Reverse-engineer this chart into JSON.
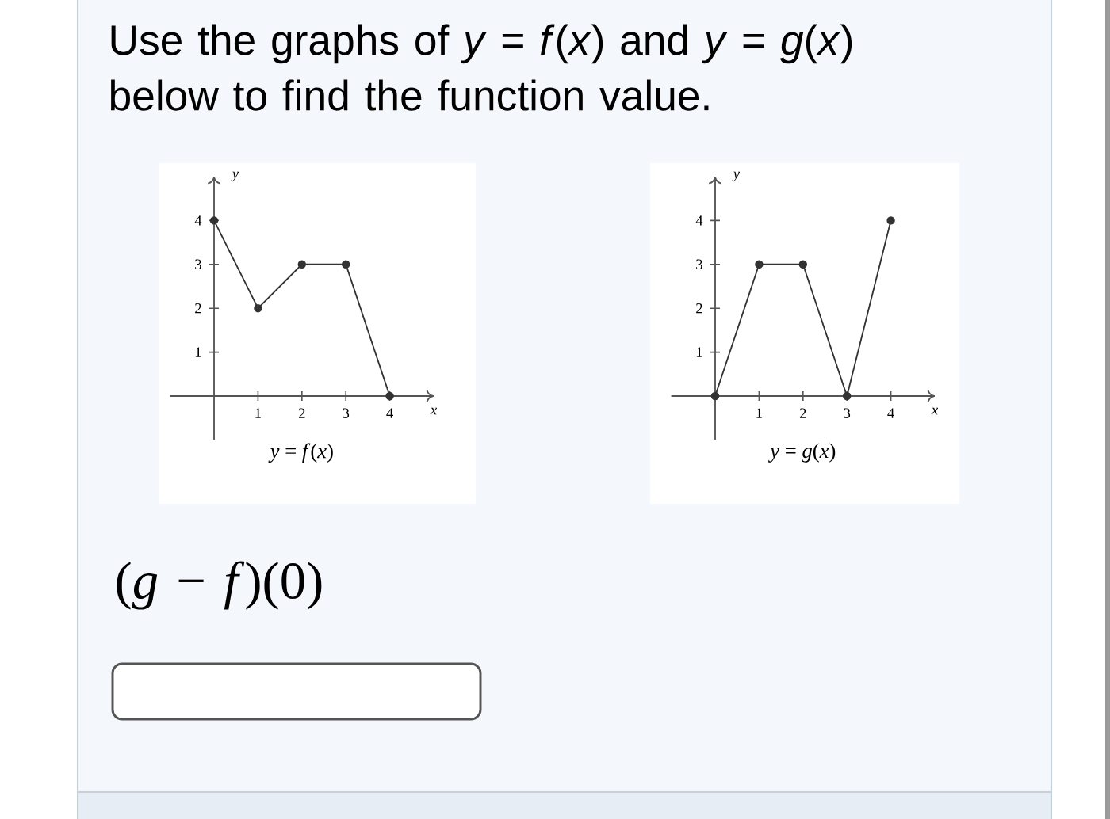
{
  "chart_data": [
    {
      "type": "other",
      "title": "Use the graphs of *y* = *f*(*x*) and *y* = *g*(*x*) below to find the function value."
    },
    {
      "type": "line",
      "title": "*y* = *f*(*x*)",
      "xlabel": "x",
      "ylabel": "y",
      "x": [
        0,
        1,
        2,
        3,
        4
      ],
      "values": [
        4,
        2,
        3,
        3,
        0
      ],
      "color": "#333333",
      "marker": "circle",
      "line_style": "solid",
      "xlim": [
        -1,
        5
      ],
      "ylim": [
        -1,
        5
      ],
      "xticks": [
        1,
        2,
        3,
        4
      ],
      "yticks": [
        1,
        2,
        3,
        4
      ]
    },
    {
      "type": "line",
      "title": "*y* = *g*(*x*)",
      "xlabel": "x",
      "ylabel": "y",
      "x": [
        0,
        1,
        2,
        3,
        4
      ],
      "values": [
        0,
        3,
        3,
        0,
        4
      ],
      "color": "#333333",
      "marker": "circle",
      "line_style": "solid",
      "xlim": [
        -1,
        5
      ],
      "ylim": [
        -1,
        5
      ],
      "xticks": [
        1,
        2,
        3,
        4
      ],
      "yticks": [
        1,
        2,
        3,
        4
      ]
    },
    {
      "type": "other",
      "title": "(*g* − *f*)(0)"
    }
  ]
}
